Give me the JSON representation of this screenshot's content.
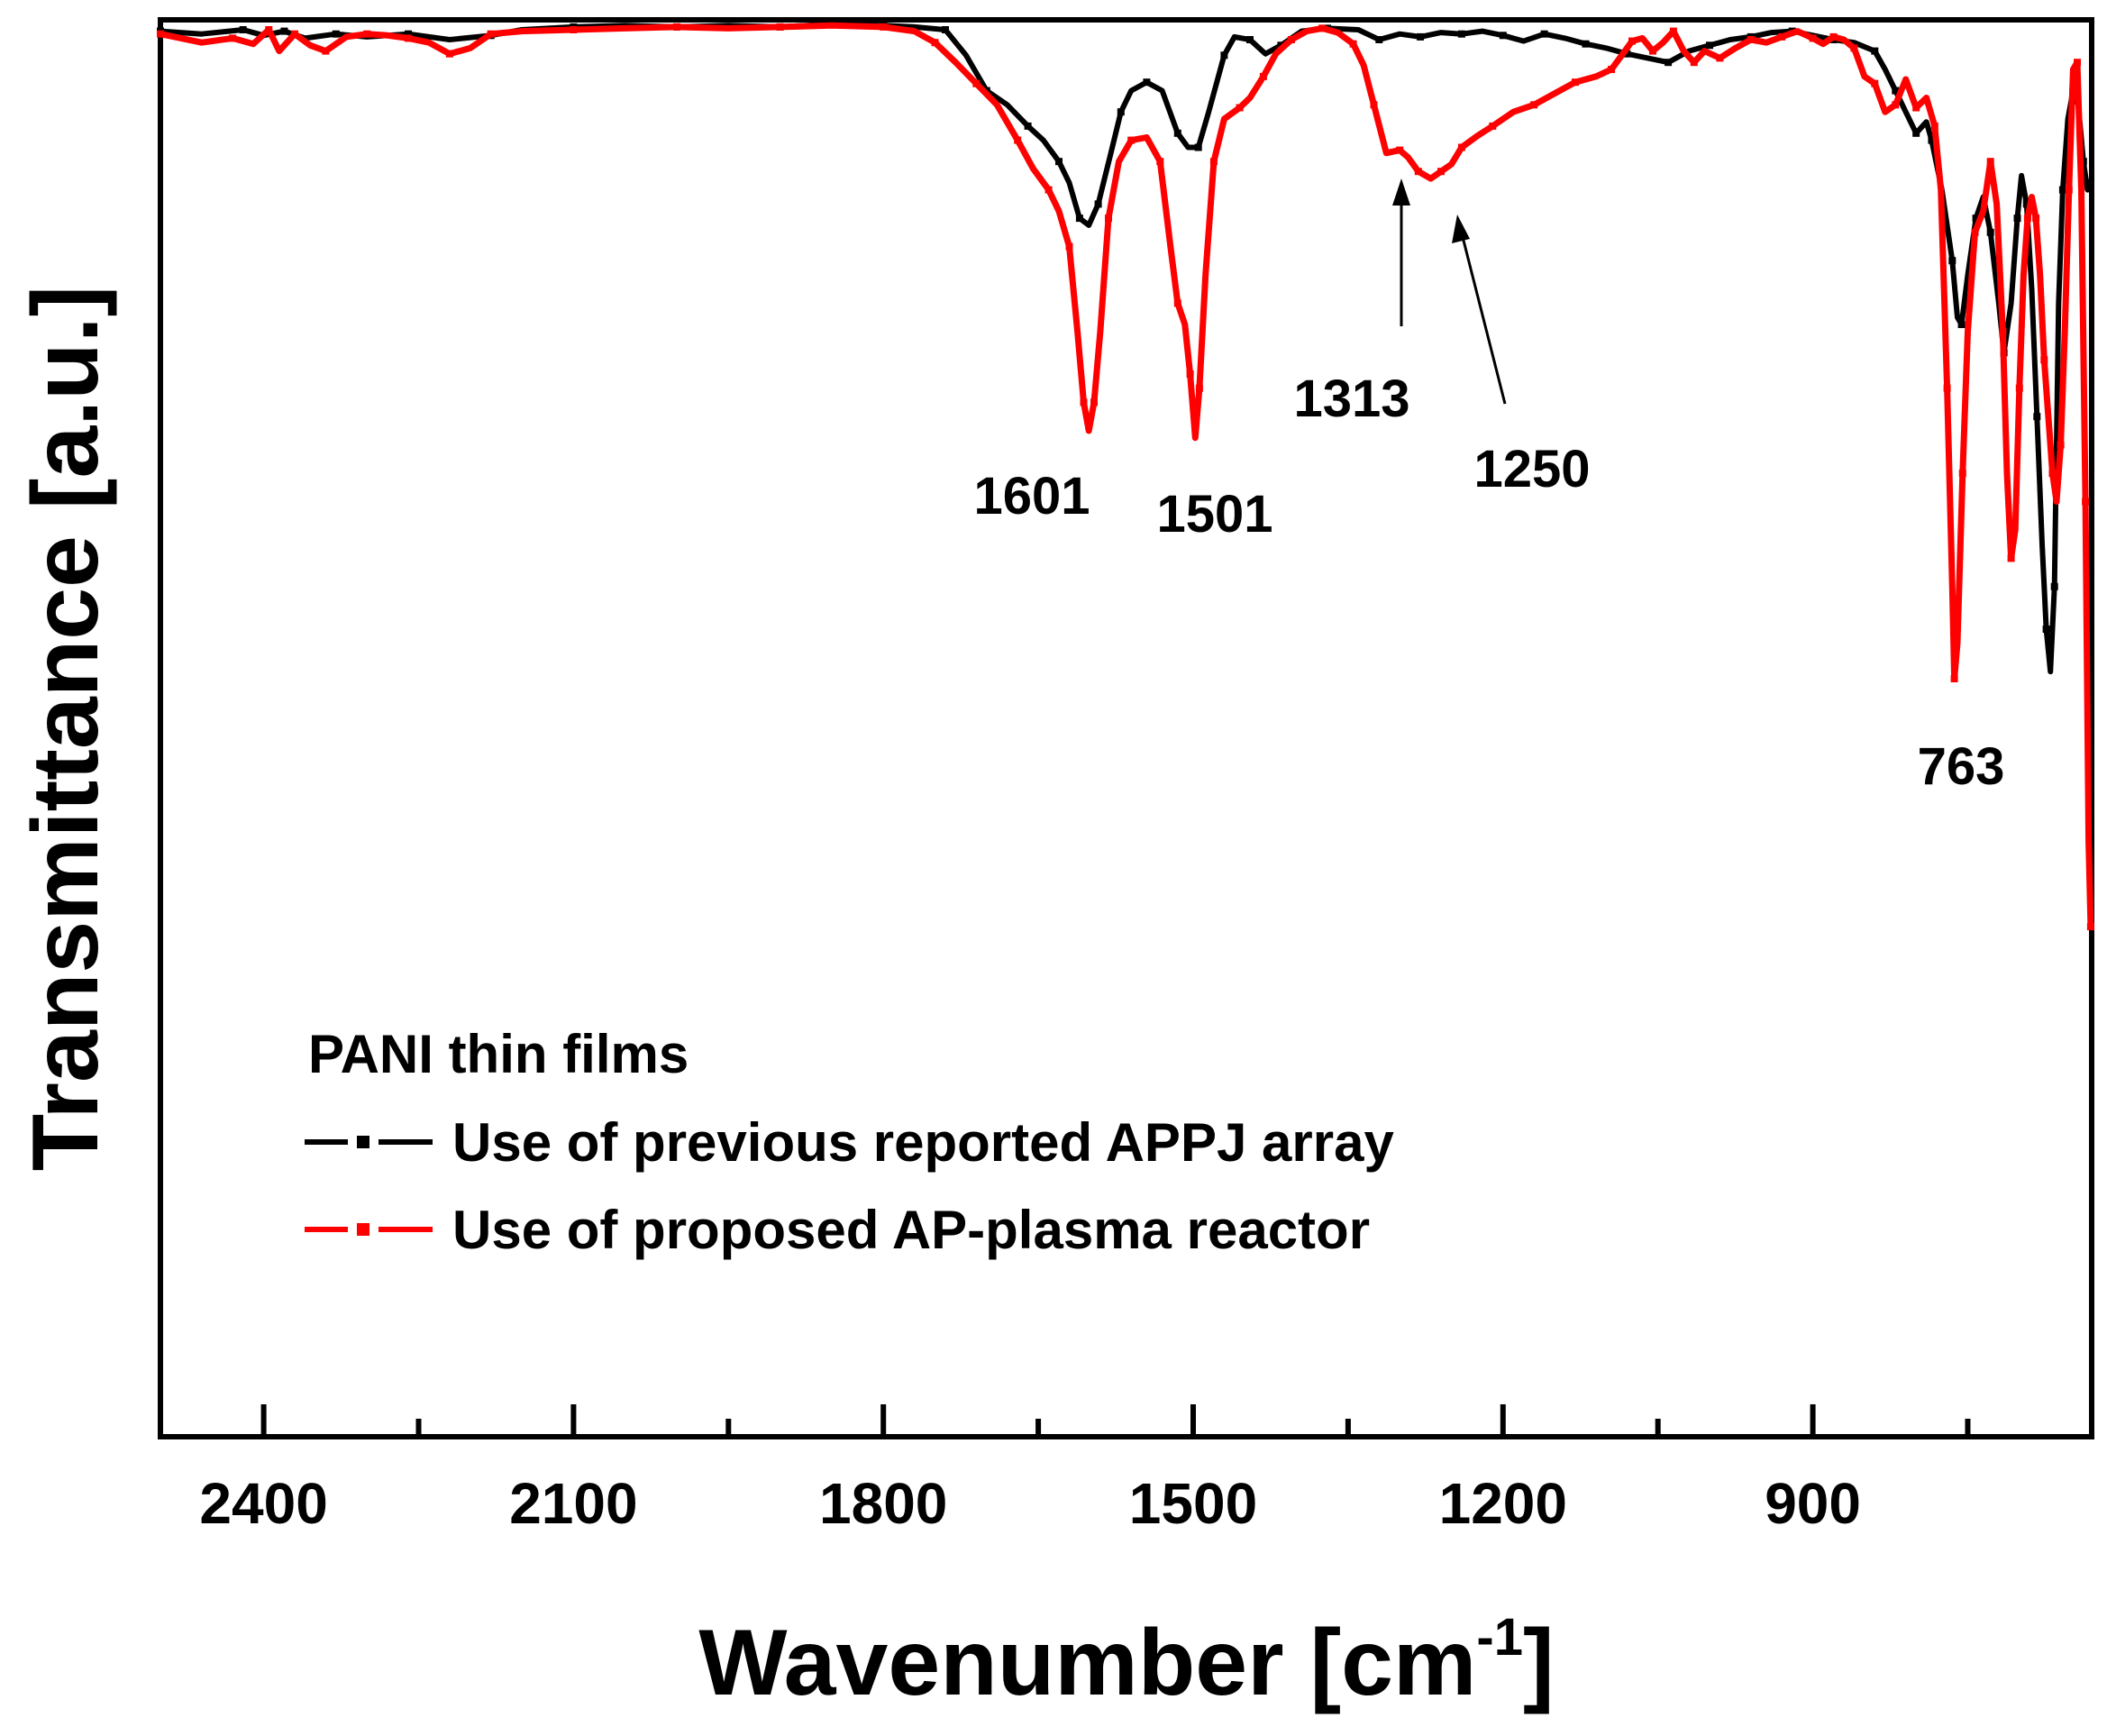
{
  "chart_data": {
    "type": "line",
    "title": "",
    "xlabel": "Wavenumber [cm",
    "xlabel_sup": "-1",
    "xlabel_close": "]",
    "ylabel": "Transmittance [a.u.]",
    "xlim": [
      2500,
      630
    ],
    "ylim": [
      0,
      100
    ],
    "x_ticks": [
      2400,
      2100,
      1800,
      1500,
      1200,
      900
    ],
    "x_tick_labels": [
      "2400",
      "2100",
      "1800",
      "1500",
      "1200",
      "900"
    ],
    "legend": {
      "title": "PANI thin films",
      "position": "bottom-left"
    },
    "series": [
      {
        "name": "Use of previous reported APPJ array",
        "color": "#000000",
        "points": [
          [
            2500,
            99.2
          ],
          [
            2460,
            99.0
          ],
          [
            2420,
            99.3
          ],
          [
            2400,
            98.9
          ],
          [
            2380,
            99.2
          ],
          [
            2360,
            98.7
          ],
          [
            2330,
            99.0
          ],
          [
            2300,
            98.8
          ],
          [
            2260,
            99.0
          ],
          [
            2220,
            98.6
          ],
          [
            2180,
            98.9
          ],
          [
            2150,
            99.3
          ],
          [
            2100,
            99.5
          ],
          [
            2050,
            99.6
          ],
          [
            2000,
            99.5
          ],
          [
            1950,
            99.6
          ],
          [
            1900,
            99.5
          ],
          [
            1850,
            99.7
          ],
          [
            1800,
            99.6
          ],
          [
            1770,
            99.5
          ],
          [
            1740,
            99.3
          ],
          [
            1720,
            97.5
          ],
          [
            1700,
            95.0
          ],
          [
            1680,
            94.0
          ],
          [
            1660,
            92.5
          ],
          [
            1645,
            91.5
          ],
          [
            1630,
            90.0
          ],
          [
            1620,
            88.5
          ],
          [
            1610,
            86.0
          ],
          [
            1601,
            85.5
          ],
          [
            1592,
            87.0
          ],
          [
            1580,
            90.5
          ],
          [
            1570,
            93.5
          ],
          [
            1560,
            95.0
          ],
          [
            1545,
            95.6
          ],
          [
            1530,
            95.0
          ],
          [
            1515,
            92.0
          ],
          [
            1505,
            91.0
          ],
          [
            1495,
            91.0
          ],
          [
            1485,
            93.5
          ],
          [
            1470,
            97.5
          ],
          [
            1460,
            98.8
          ],
          [
            1445,
            98.6
          ],
          [
            1430,
            97.6
          ],
          [
            1415,
            98.2
          ],
          [
            1395,
            99.2
          ],
          [
            1370,
            99.4
          ],
          [
            1340,
            99.3
          ],
          [
            1320,
            98.6
          ],
          [
            1300,
            99.0
          ],
          [
            1280,
            98.8
          ],
          [
            1260,
            99.1
          ],
          [
            1240,
            99.0
          ],
          [
            1220,
            99.2
          ],
          [
            1200,
            98.9
          ],
          [
            1180,
            98.5
          ],
          [
            1160,
            99.0
          ],
          [
            1140,
            98.7
          ],
          [
            1120,
            98.3
          ],
          [
            1100,
            98.0
          ],
          [
            1080,
            97.6
          ],
          [
            1060,
            97.3
          ],
          [
            1040,
            97.0
          ],
          [
            1020,
            97.8
          ],
          [
            1000,
            98.2
          ],
          [
            980,
            98.6
          ],
          [
            960,
            98.8
          ],
          [
            940,
            99.1
          ],
          [
            920,
            99.2
          ],
          [
            900,
            98.9
          ],
          [
            880,
            98.6
          ],
          [
            860,
            98.4
          ],
          [
            840,
            97.8
          ],
          [
            830,
            96.5
          ],
          [
            820,
            95.0
          ],
          [
            810,
            93.5
          ],
          [
            800,
            92.0
          ],
          [
            790,
            92.8
          ],
          [
            785,
            91.5
          ],
          [
            775,
            88.0
          ],
          [
            765,
            83.0
          ],
          [
            760,
            79.0
          ],
          [
            756,
            78.5
          ],
          [
            750,
            82.0
          ],
          [
            742,
            86.0
          ],
          [
            735,
            87.5
          ],
          [
            728,
            85.0
          ],
          [
            720,
            80.0
          ],
          [
            715,
            76.5
          ],
          [
            708,
            80.0
          ],
          [
            702,
            86.0
          ],
          [
            698,
            89.0
          ],
          [
            693,
            87.0
          ],
          [
            688,
            81.0
          ],
          [
            683,
            72.0
          ],
          [
            678,
            63.0
          ],
          [
            674,
            57.0
          ],
          [
            670,
            54.0
          ],
          [
            666,
            60.0
          ],
          [
            662,
            80.0
          ],
          [
            658,
            88.0
          ],
          [
            653,
            93.0
          ],
          [
            648,
            95.0
          ],
          [
            643,
            94.0
          ],
          [
            638,
            90.0
          ],
          [
            634,
            88.0
          ],
          [
            632,
            88.5
          ]
        ]
      },
      {
        "name": "Use of proposed AP-plasma reactor",
        "color": "#ff0000",
        "points": [
          [
            2500,
            99.0
          ],
          [
            2460,
            98.4
          ],
          [
            2430,
            98.7
          ],
          [
            2410,
            98.3
          ],
          [
            2395,
            99.3
          ],
          [
            2385,
            97.8
          ],
          [
            2370,
            99.0
          ],
          [
            2355,
            98.2
          ],
          [
            2340,
            97.8
          ],
          [
            2320,
            98.8
          ],
          [
            2300,
            99.0
          ],
          [
            2280,
            98.9
          ],
          [
            2260,
            98.7
          ],
          [
            2240,
            98.4
          ],
          [
            2220,
            97.6
          ],
          [
            2200,
            98.0
          ],
          [
            2180,
            99.0
          ],
          [
            2150,
            99.2
          ],
          [
            2100,
            99.3
          ],
          [
            2050,
            99.4
          ],
          [
            2000,
            99.5
          ],
          [
            1950,
            99.4
          ],
          [
            1900,
            99.5
          ],
          [
            1850,
            99.6
          ],
          [
            1800,
            99.5
          ],
          [
            1770,
            99.2
          ],
          [
            1750,
            98.4
          ],
          [
            1730,
            97.0
          ],
          [
            1710,
            95.5
          ],
          [
            1690,
            94.0
          ],
          [
            1670,
            91.5
          ],
          [
            1655,
            89.5
          ],
          [
            1640,
            88.0
          ],
          [
            1630,
            86.5
          ],
          [
            1620,
            84.0
          ],
          [
            1612,
            78.0
          ],
          [
            1606,
            73.0
          ],
          [
            1601,
            71.0
          ],
          [
            1596,
            73.0
          ],
          [
            1590,
            78.0
          ],
          [
            1582,
            86.0
          ],
          [
            1572,
            90.0
          ],
          [
            1560,
            91.5
          ],
          [
            1545,
            91.7
          ],
          [
            1532,
            90.0
          ],
          [
            1522,
            84.0
          ],
          [
            1515,
            80.0
          ],
          [
            1508,
            78.5
          ],
          [
            1503,
            75.0
          ],
          [
            1498,
            70.5
          ],
          [
            1494,
            74.0
          ],
          [
            1488,
            82.0
          ],
          [
            1480,
            90.0
          ],
          [
            1470,
            93.0
          ],
          [
            1455,
            93.8
          ],
          [
            1445,
            94.5
          ],
          [
            1432,
            96.0
          ],
          [
            1420,
            97.6
          ],
          [
            1405,
            98.6
          ],
          [
            1390,
            99.2
          ],
          [
            1375,
            99.4
          ],
          [
            1360,
            99.1
          ],
          [
            1345,
            98.3
          ],
          [
            1335,
            96.8
          ],
          [
            1325,
            94.0
          ],
          [
            1313,
            90.6
          ],
          [
            1300,
            90.8
          ],
          [
            1292,
            90.3
          ],
          [
            1282,
            89.3
          ],
          [
            1270,
            88.8
          ],
          [
            1260,
            89.3
          ],
          [
            1250,
            89.8
          ],
          [
            1240,
            91.0
          ],
          [
            1225,
            91.8
          ],
          [
            1210,
            92.5
          ],
          [
            1190,
            93.5
          ],
          [
            1170,
            94.0
          ],
          [
            1150,
            94.8
          ],
          [
            1130,
            95.6
          ],
          [
            1110,
            96.0
          ],
          [
            1095,
            96.5
          ],
          [
            1085,
            97.5
          ],
          [
            1075,
            98.5
          ],
          [
            1065,
            98.7
          ],
          [
            1055,
            97.8
          ],
          [
            1045,
            98.4
          ],
          [
            1035,
            99.2
          ],
          [
            1025,
            97.8
          ],
          [
            1015,
            97.0
          ],
          [
            1005,
            97.8
          ],
          [
            990,
            97.3
          ],
          [
            975,
            98.0
          ],
          [
            960,
            98.6
          ],
          [
            945,
            98.4
          ],
          [
            930,
            98.8
          ],
          [
            915,
            99.2
          ],
          [
            900,
            98.7
          ],
          [
            890,
            98.3
          ],
          [
            880,
            98.8
          ],
          [
            870,
            98.6
          ],
          [
            860,
            98.0
          ],
          [
            850,
            96.0
          ],
          [
            840,
            95.5
          ],
          [
            830,
            93.5
          ],
          [
            820,
            94.0
          ],
          [
            810,
            95.8
          ],
          [
            800,
            93.8
          ],
          [
            790,
            94.5
          ],
          [
            782,
            92.5
          ],
          [
            776,
            88.0
          ],
          [
            770,
            74.0
          ],
          [
            765,
            60.0
          ],
          [
            763,
            53.5
          ],
          [
            760,
            56.0
          ],
          [
            755,
            68.0
          ],
          [
            750,
            78.0
          ],
          [
            743,
            85.0
          ],
          [
            735,
            86.5
          ],
          [
            728,
            90.0
          ],
          [
            722,
            87.0
          ],
          [
            716,
            78.0
          ],
          [
            712,
            68.0
          ],
          [
            708,
            62.0
          ],
          [
            704,
            64.0
          ],
          [
            700,
            74.0
          ],
          [
            696,
            82.0
          ],
          [
            692,
            86.0
          ],
          [
            688,
            87.5
          ],
          [
            684,
            86.0
          ],
          [
            680,
            82.0
          ],
          [
            676,
            76.0
          ],
          [
            672,
            72.0
          ],
          [
            668,
            68.0
          ],
          [
            664,
            66.0
          ],
          [
            660,
            70.0
          ],
          [
            656,
            78.0
          ],
          [
            652,
            88.0
          ],
          [
            648,
            96.5
          ],
          [
            644,
            97.0
          ],
          [
            640,
            88.0
          ],
          [
            636,
            66.0
          ],
          [
            633,
            42.0
          ],
          [
            631,
            36.0
          ]
        ]
      }
    ],
    "annotations": [
      {
        "text": "1601",
        "x": 1601
      },
      {
        "text": "1501",
        "x": 1501
      },
      {
        "text": "1313",
        "x": 1313
      },
      {
        "text": "1250",
        "x": 1250
      },
      {
        "text": "763",
        "x": 763
      }
    ]
  }
}
